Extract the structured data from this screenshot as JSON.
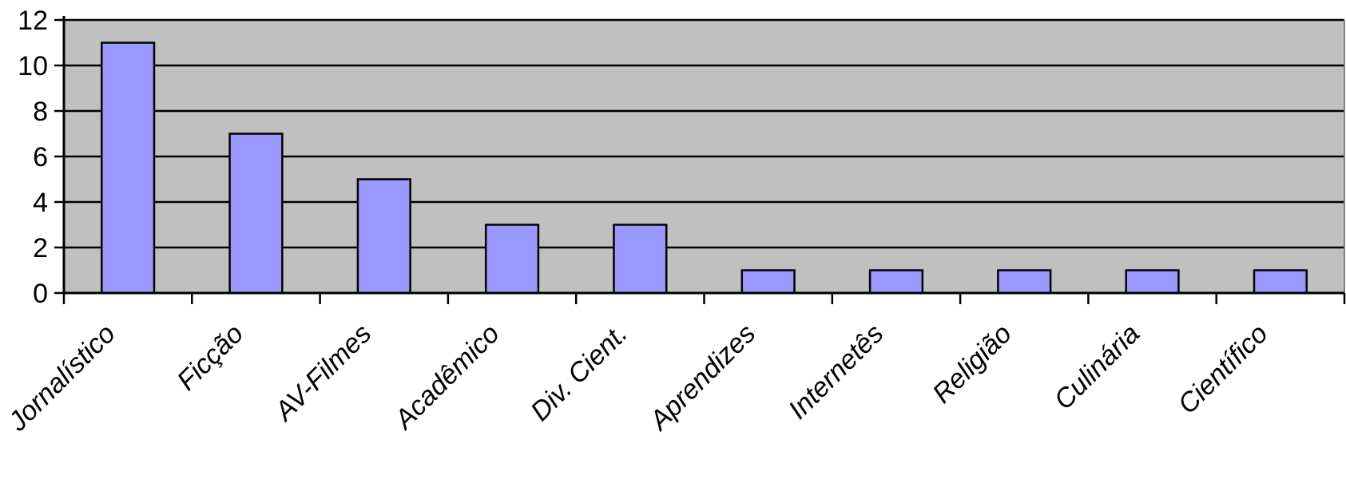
{
  "chart_data": {
    "type": "bar",
    "categories": [
      "Jornalístico",
      "Ficção",
      "AV-Filmes",
      "Acadêmico",
      "Div. Cient.",
      "Aprendizes",
      "Internetês",
      "Religião",
      "Culinária",
      "Científico"
    ],
    "values": [
      11,
      7,
      5,
      3,
      3,
      1,
      1,
      1,
      1,
      1
    ],
    "yticks": [
      "0",
      "2",
      "4",
      "6",
      "8",
      "10",
      "12"
    ],
    "ylim": [
      0,
      12
    ],
    "grid": true,
    "legend": "none",
    "colors": {
      "bar_fill": "#9999ff",
      "bar_stroke": "#000000",
      "plot_background": "#c0c0c0",
      "gridline": "#000000"
    }
  }
}
